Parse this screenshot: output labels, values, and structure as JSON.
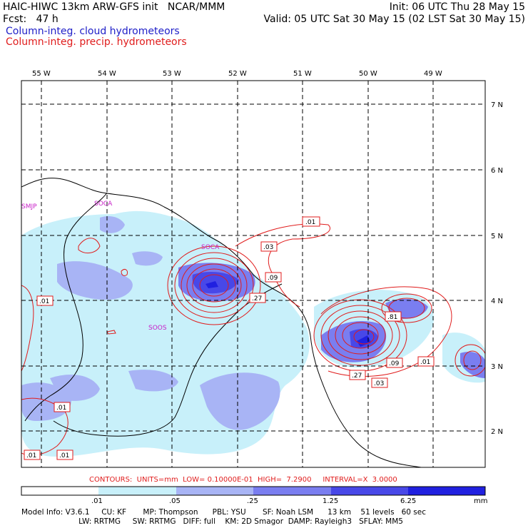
{
  "header": {
    "left_line1": "HAIC-HIWC 13km ARW-GFS init   NCAR/MMM",
    "left_line2": "Fcst:   47 h",
    "right_line1": "Init: 06 UTC Thu 28 May 15",
    "right_line2": "Valid: 05 UTC Sat 30 May 15 (02 LST Sat 30 May 15)",
    "field_cloud": "Column-integ. cloud hydrometeors",
    "field_precip": "Column-integ. precip. hydrometeors"
  },
  "axes": {
    "lon_labels": [
      "55 W",
      "54 W",
      "53 W",
      "52 W",
      "51 W",
      "50 W",
      "49 W"
    ],
    "lat_labels": [
      "7 N",
      "6 N",
      "5 N",
      "4 N",
      "3 N",
      "2 N"
    ]
  },
  "stations": [
    "SMJP",
    "SOCA",
    "SOCA",
    "SOOS"
  ],
  "contour_labels": [
    ".01",
    ".03",
    ".09",
    ".27",
    ".01",
    ".81",
    ".09",
    ".01",
    ".27",
    ".03",
    ".01",
    ".01",
    ".01"
  ],
  "contour_note": "CONTOURS:  UNITS=mm  LOW= 0.10000E-01  HIGH=  7.2900     INTERVAL=X  3.0000",
  "colorbar": {
    "ticks": [
      ".01",
      ".05",
      ".25",
      "1.25",
      "6.25"
    ],
    "units": "mm",
    "colors": [
      "#ffffff",
      "#c8f0fa",
      "#a8b4f5",
      "#7a7ef0",
      "#4848e8",
      "#2020e0"
    ]
  },
  "model_info": {
    "line1": "Model Info: V3.6.1     CU: KF       MP: Thompson      PBL: YSU       SF: Noah LSM      13 km    51 levels   60 sec",
    "line2": "                        LW: RRTMG     SW: RRTMG   DIFF: full    KM: 2D Smagor  DAMP: Rayleigh3   SFLAY: MM5"
  },
  "colors": {
    "cloud_text": "#2020c8",
    "precip_contour": "#e01c1c",
    "station": "#c820c8"
  }
}
